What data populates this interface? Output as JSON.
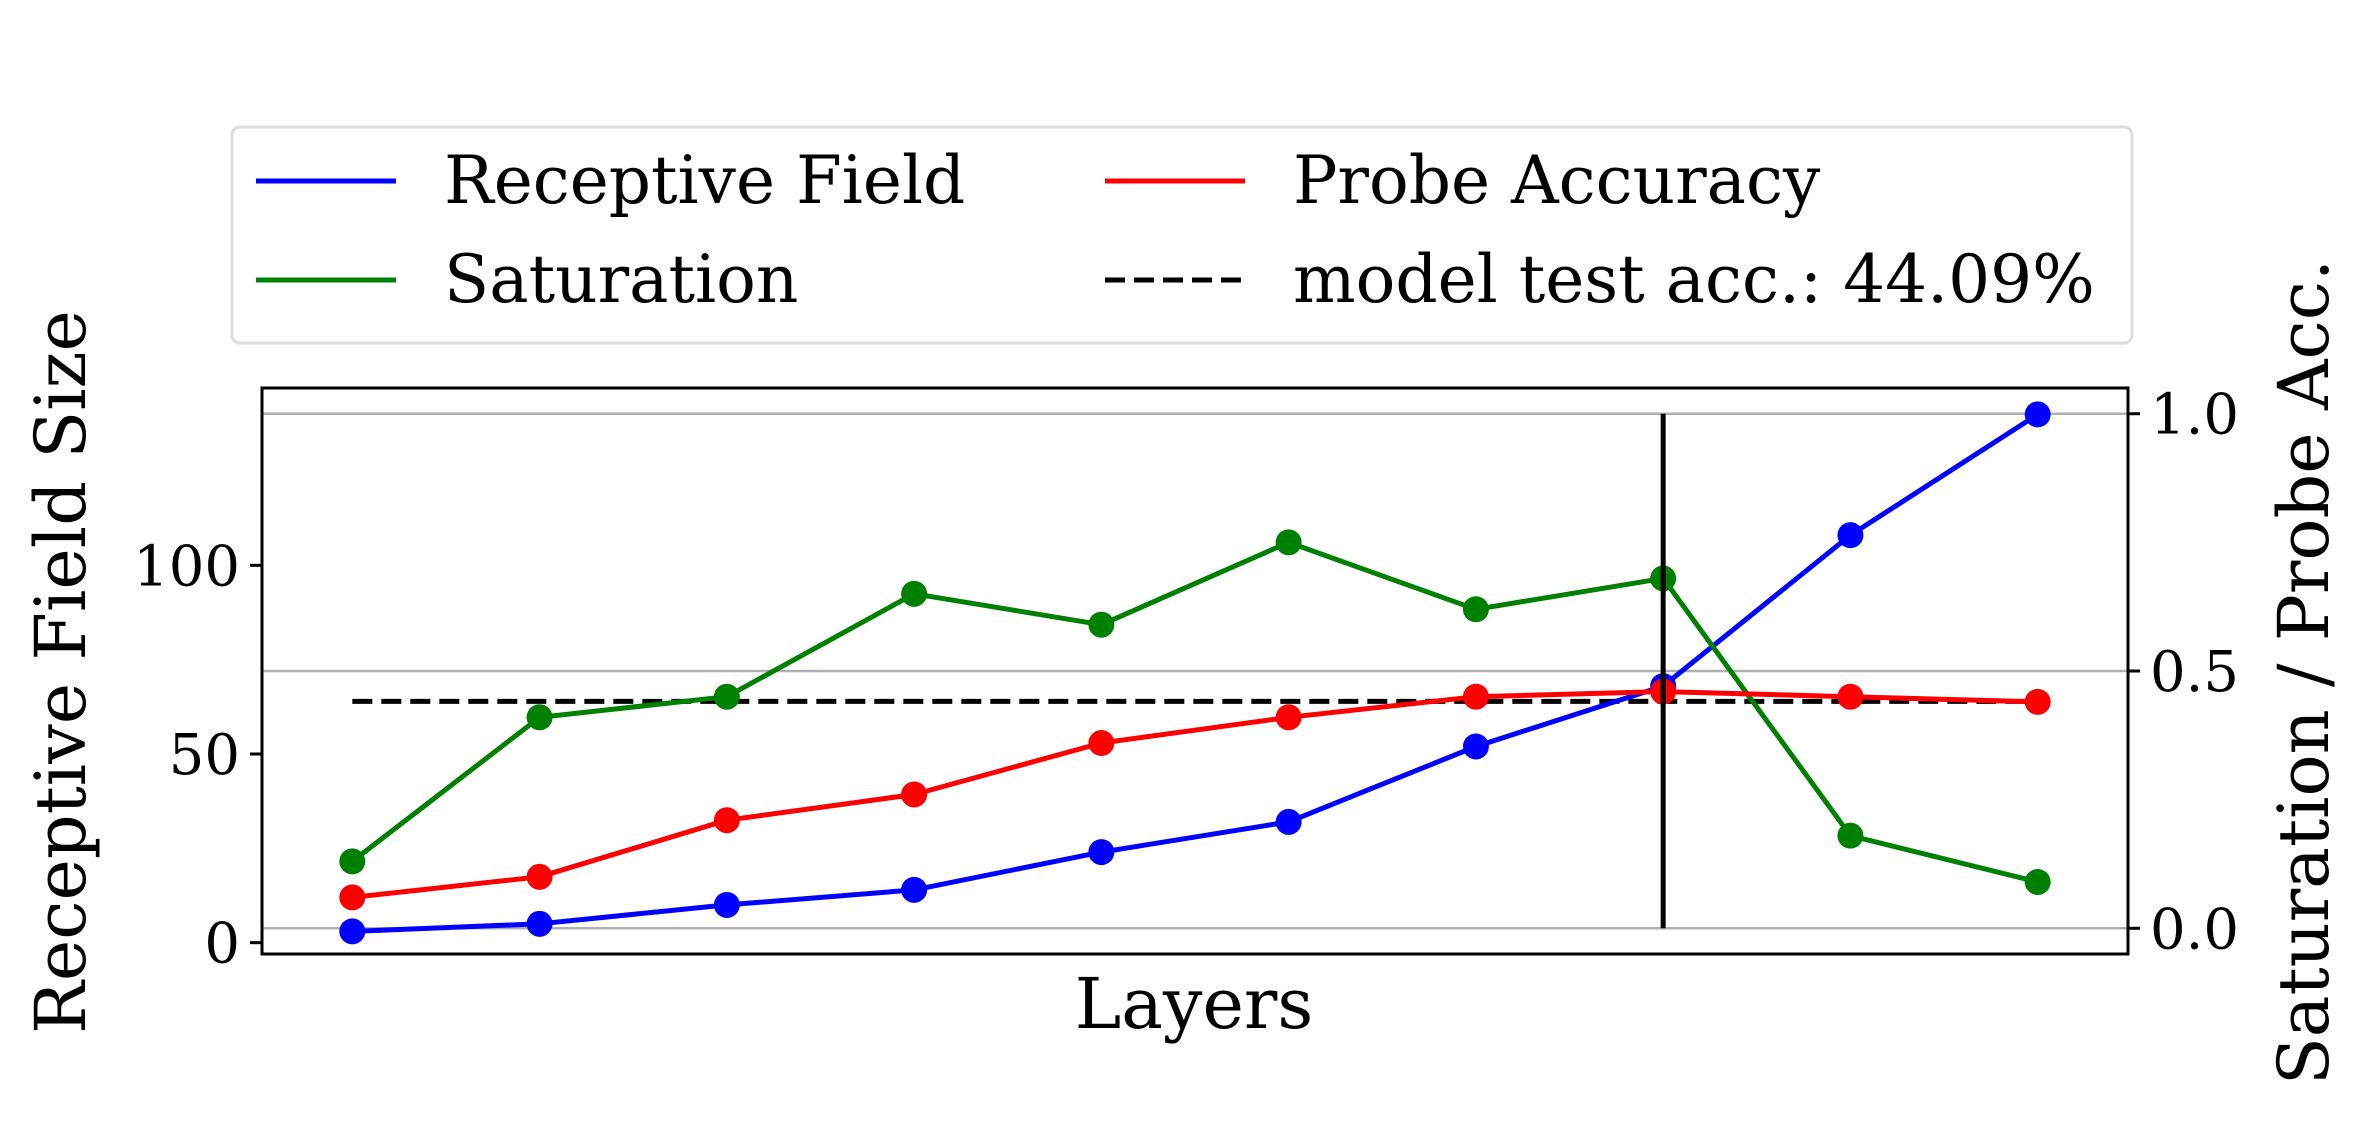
{
  "chart_data": {
    "type": "line",
    "xlabel": "Layers",
    "ylabel_left": "Receptive Field Size",
    "ylabel_right": "Saturation / Probe Acc.",
    "x": [
      1,
      2,
      3,
      4,
      5,
      6,
      7,
      8,
      9,
      10
    ],
    "ylim_left": [
      -3,
      147
    ],
    "ylim_right": [
      -0.05,
      1.05
    ],
    "yticks_left": [
      "0",
      "50",
      "100"
    ],
    "yticks_right": [
      "0.0",
      "0.5",
      "1.0"
    ],
    "grid": "horizontal on right axis",
    "legend": {
      "placement": "top, above plot",
      "columns": 2,
      "entries": [
        "Receptive Field",
        "Probe Accuracy",
        "Saturation",
        "model test acc.: 44.09%"
      ]
    },
    "series": [
      {
        "name": "Receptive Field",
        "axis": "left",
        "color": "#0000ff",
        "values": [
          3,
          5,
          10,
          14,
          24,
          32,
          52,
          68,
          108,
          140
        ]
      },
      {
        "name": "Saturation",
        "axis": "right",
        "color": "#008000",
        "values": [
          0.13,
          0.41,
          0.45,
          0.65,
          0.59,
          0.75,
          0.62,
          0.68,
          0.18,
          0.09
        ]
      },
      {
        "name": "Probe Accuracy",
        "axis": "right",
        "color": "#ff0000",
        "values": [
          0.06,
          0.1,
          0.21,
          0.26,
          0.36,
          0.41,
          0.45,
          0.46,
          0.45,
          0.44
        ]
      }
    ],
    "reference_line": {
      "name": "model test acc.: 44.09%",
      "axis": "right",
      "value": 0.4409,
      "style": "dashed",
      "color": "#000000",
      "x_range": [
        1,
        10
      ]
    },
    "vertical_marker": {
      "x": 8,
      "range": [
        0,
        1
      ],
      "color": "#000000"
    }
  }
}
